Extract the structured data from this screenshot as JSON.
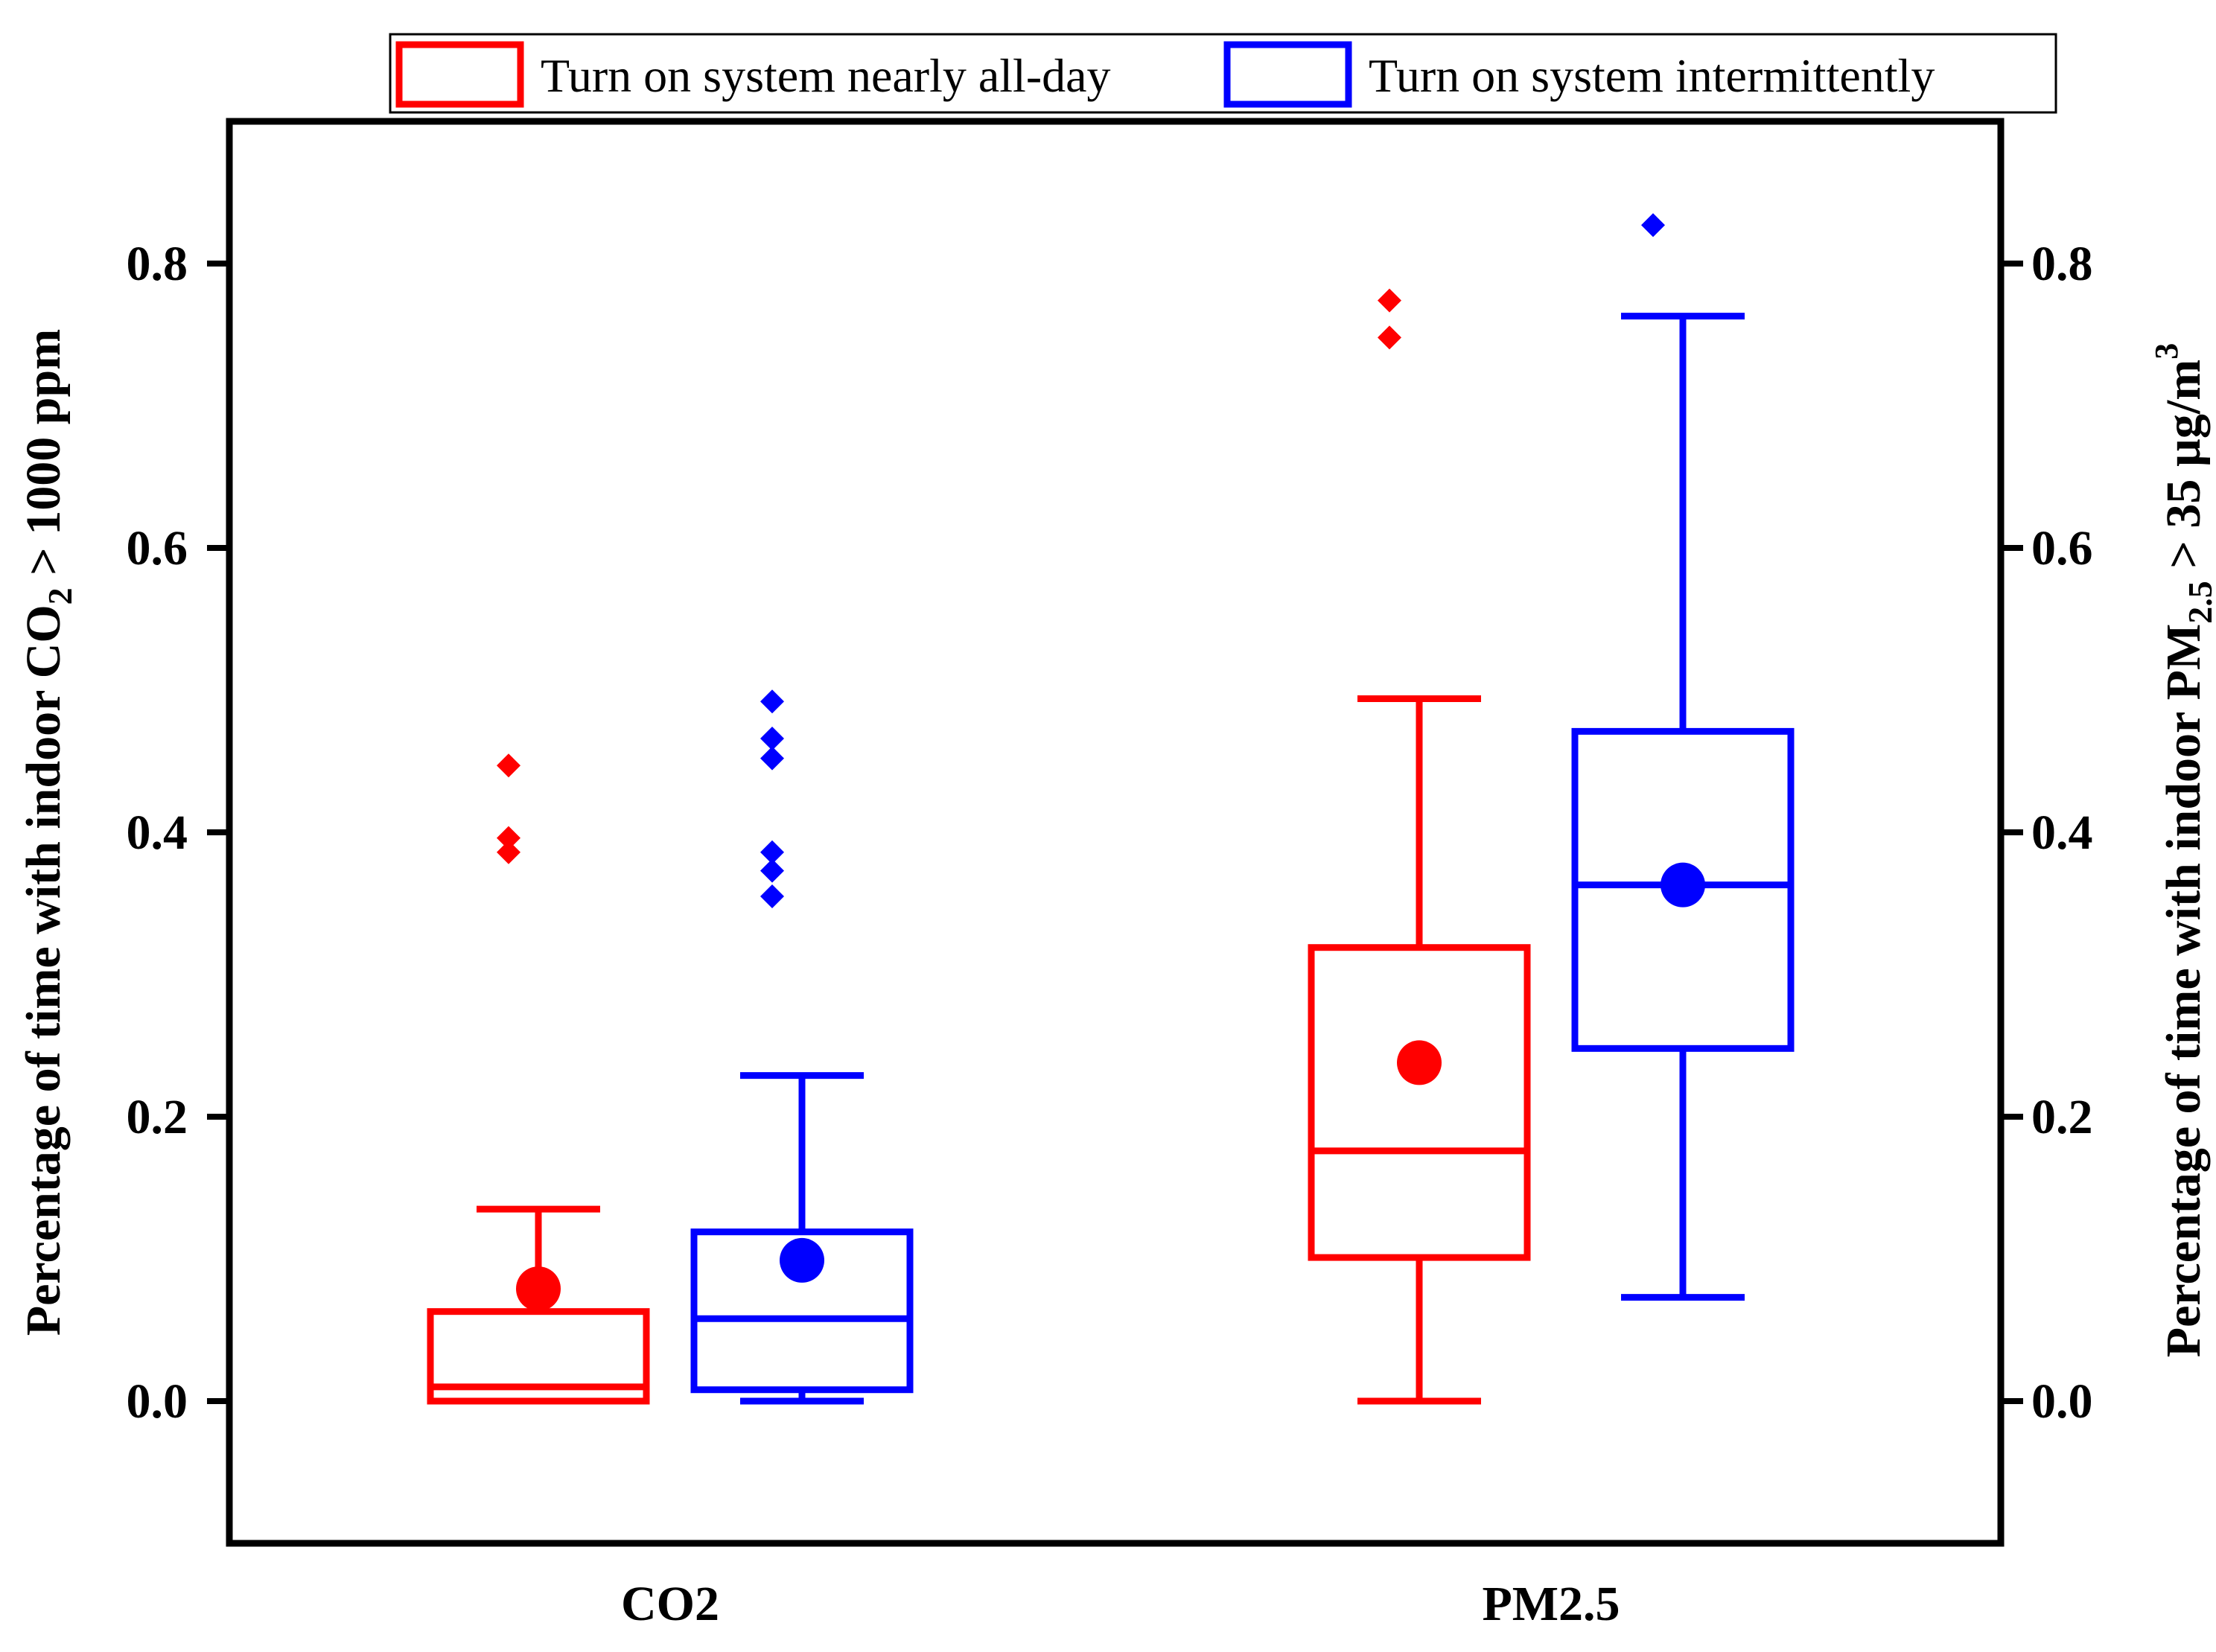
{
  "chart_data": {
    "type": "box",
    "categories": [
      "CO2",
      "PM2.5"
    ],
    "y_left_label": {
      "pre": "Percentage of time with indoor CO",
      "sub": "2",
      "post": " > 1000 ppm"
    },
    "y_right_label": {
      "pre": "Percentage of time with indoor PM",
      "sub": "2.5",
      "mid": " > 35 µg/m",
      "sup": "3"
    },
    "ylim": [
      -0.1,
      0.9
    ],
    "yticks": [
      0.0,
      0.2,
      0.4,
      0.6,
      0.8
    ],
    "ytick_labels": [
      "0.0",
      "0.2",
      "0.4",
      "0.6",
      "0.8"
    ],
    "legend": {
      "position": "top"
    },
    "series": [
      {
        "name": "Turn on system nearly all-day",
        "color": "#ff0000",
        "boxes": [
          {
            "category": "CO2",
            "whisker_low": 0.0,
            "q1": 0.0,
            "median": 0.01,
            "q3": 0.063,
            "whisker_high": 0.135,
            "mean": 0.079,
            "outliers": [
              0.386,
              0.396,
              0.447
            ]
          },
          {
            "category": "PM2.5",
            "whisker_low": 0.0,
            "q1": 0.101,
            "median": 0.176,
            "q3": 0.319,
            "whisker_high": 0.494,
            "mean": 0.238,
            "outliers": [
              0.748,
              0.774
            ]
          }
        ]
      },
      {
        "name": "Turn on system intermittently",
        "color": "#0000ff",
        "boxes": [
          {
            "category": "CO2",
            "whisker_low": 0.0,
            "q1": 0.008,
            "median": 0.058,
            "q3": 0.119,
            "whisker_high": 0.229,
            "mean": 0.099,
            "outliers": [
              0.355,
              0.373,
              0.386,
              0.452,
              0.466,
              0.492
            ]
          },
          {
            "category": "PM2.5",
            "whisker_low": 0.073,
            "q1": 0.248,
            "median": 0.363,
            "q3": 0.471,
            "whisker_high": 0.763,
            "mean": 0.363,
            "outliers": [
              0.827
            ]
          }
        ]
      }
    ]
  }
}
